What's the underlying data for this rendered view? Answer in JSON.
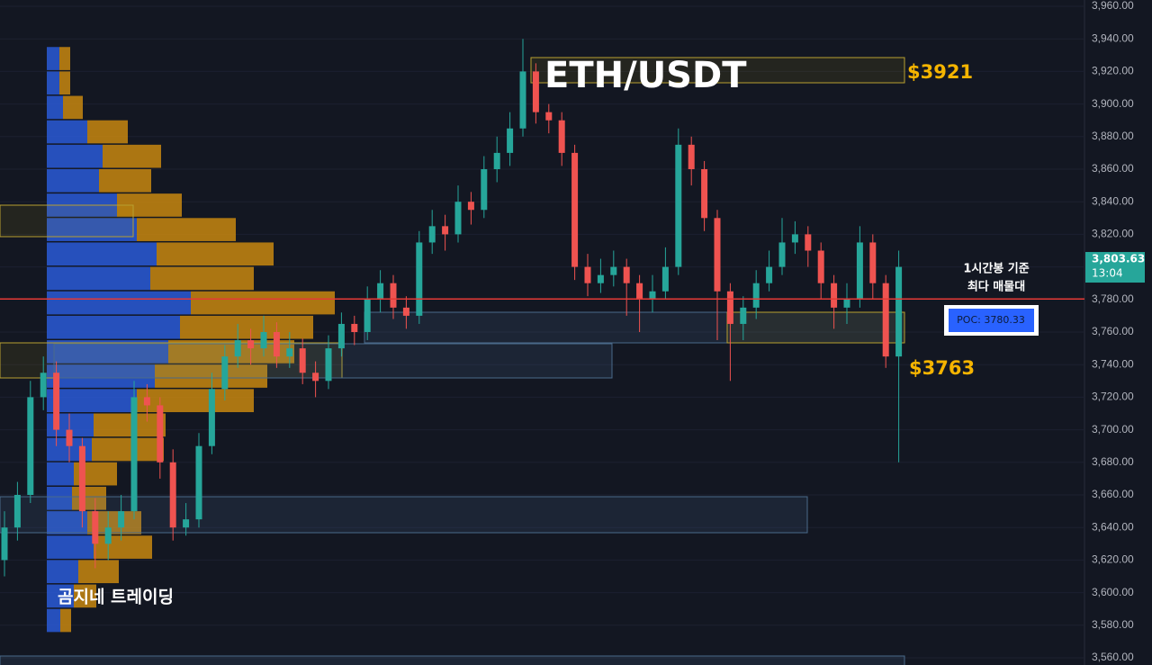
{
  "chart_data": {
    "type": "candlestick",
    "title": "ETH/USDT",
    "up_color": "#26a69a",
    "down_color": "#ef5350",
    "open": [
      3620,
      3640,
      3660,
      3720,
      3735,
      3700,
      3690,
      3650,
      3630,
      3640,
      3650,
      3720,
      3715,
      3680,
      3640,
      3645,
      3690,
      3725,
      3745,
      3755,
      3750,
      3760,
      3745,
      3750,
      3735,
      3730,
      3750,
      3765,
      3760,
      3780,
      3790,
      3775,
      3770,
      3815,
      3825,
      3820,
      3840,
      3835,
      3860,
      3870,
      3885,
      3920,
      3895,
      3890,
      3870,
      3800,
      3790,
      3795,
      3800,
      3790,
      3780,
      3785,
      3800,
      3875,
      3860,
      3830,
      3785,
      3765,
      3775,
      3790,
      3800,
      3815,
      3820,
      3810,
      3790,
      3775,
      3780,
      3815,
      3790,
      3745
    ],
    "high": [
      3650,
      3668,
      3730,
      3745,
      3742,
      3710,
      3695,
      3658,
      3650,
      3660,
      3730,
      3728,
      3720,
      3688,
      3655,
      3698,
      3735,
      3752,
      3765,
      3762,
      3770,
      3766,
      3760,
      3756,
      3742,
      3758,
      3772,
      3770,
      3788,
      3798,
      3795,
      3782,
      3822,
      3835,
      3832,
      3850,
      3846,
      3868,
      3880,
      3895,
      3940,
      3925,
      3900,
      3895,
      3875,
      3808,
      3805,
      3810,
      3805,
      3795,
      3795,
      3812,
      3885,
      3880,
      3865,
      3835,
      3790,
      3782,
      3798,
      3810,
      3830,
      3828,
      3825,
      3815,
      3795,
      3790,
      3825,
      3820,
      3795,
      3810
    ],
    "low": [
      3610,
      3632,
      3655,
      3712,
      3690,
      3680,
      3640,
      3615,
      3620,
      3632,
      3645,
      3705,
      3670,
      3632,
      3635,
      3640,
      3685,
      3718,
      3738,
      3740,
      3745,
      3738,
      3738,
      3728,
      3720,
      3725,
      3745,
      3752,
      3755,
      3772,
      3768,
      3762,
      3765,
      3808,
      3810,
      3815,
      3826,
      3830,
      3852,
      3862,
      3880,
      3888,
      3882,
      3862,
      3792,
      3782,
      3784,
      3788,
      3770,
      3760,
      3772,
      3780,
      3795,
      3850,
      3822,
      3755,
      3730,
      3755,
      3768,
      3785,
      3795,
      3808,
      3800,
      3780,
      3762,
      3765,
      3775,
      3780,
      3738,
      3680
    ],
    "close": [
      3640,
      3660,
      3720,
      3735,
      3700,
      3690,
      3650,
      3630,
      3640,
      3650,
      3720,
      3715,
      3680,
      3640,
      3645,
      3690,
      3725,
      3745,
      3755,
      3750,
      3760,
      3745,
      3750,
      3735,
      3730,
      3750,
      3765,
      3760,
      3780,
      3790,
      3775,
      3770,
      3815,
      3825,
      3820,
      3840,
      3835,
      3860,
      3870,
      3885,
      3920,
      3895,
      3890,
      3870,
      3800,
      3790,
      3795,
      3800,
      3790,
      3780,
      3785,
      3800,
      3875,
      3860,
      3830,
      3785,
      3765,
      3775,
      3790,
      3800,
      3815,
      3820,
      3810,
      3790,
      3775,
      3780,
      3815,
      3790,
      3745,
      3800
    ],
    "ylim": [
      3560,
      3960
    ],
    "yticks": [
      {
        "value": 3560,
        "label": "3,560.00"
      },
      {
        "value": 3580,
        "label": "3,580.00"
      },
      {
        "value": 3600,
        "label": "3,600.00"
      },
      {
        "value": 3620,
        "label": "3,620.00"
      },
      {
        "value": 3640,
        "label": "3,640.00"
      },
      {
        "value": 3660,
        "label": "3,660.00"
      },
      {
        "value": 3680,
        "label": "3,680.00"
      },
      {
        "value": 3700,
        "label": "3,700.00"
      },
      {
        "value": 3720,
        "label": "3,720.00"
      },
      {
        "value": 3740,
        "label": "3,740.00"
      },
      {
        "value": 3760,
        "label": "3,760.00"
      },
      {
        "value": 3780,
        "label": "3,780.00"
      },
      {
        "value": 3800,
        "label": "3,800.00"
      },
      {
        "value": 3820,
        "label": "3,820.00"
      },
      {
        "value": 3840,
        "label": "3,840.00"
      },
      {
        "value": 3860,
        "label": "3,860.00"
      },
      {
        "value": 3880,
        "label": "3,880.00"
      },
      {
        "value": 3900,
        "label": "3,900.00"
      },
      {
        "value": 3920,
        "label": "3,920.00"
      },
      {
        "value": 3940,
        "label": "3,940.00"
      },
      {
        "value": 3960,
        "label": "3,960.00"
      }
    ],
    "profile": {
      "bins": [
        3575,
        3590,
        3605,
        3620,
        3635,
        3650,
        3665,
        3680,
        3695,
        3710,
        3725,
        3740,
        3755,
        3770,
        3785,
        3800,
        3815,
        3830,
        3845,
        3860,
        3875,
        3890,
        3905,
        3920,
        3935
      ],
      "buy": [
        15,
        30,
        35,
        52,
        45,
        28,
        30,
        50,
        52,
        100,
        120,
        135,
        148,
        160,
        115,
        122,
        100,
        78,
        58,
        62,
        45,
        18,
        14,
        14
      ],
      "sell": [
        12,
        25,
        45,
        65,
        60,
        38,
        48,
        80,
        80,
        130,
        125,
        140,
        148,
        160,
        115,
        130,
        110,
        72,
        58,
        65,
        45,
        22,
        12,
        12
      ],
      "buy_color": "#2a5bd7",
      "sell_color": "#c8870f"
    },
    "poc": 3780.33,
    "poc_label": "POC: 3780.33",
    "last_price": 3803.63,
    "last_price_label": "3,803.63",
    "countdown": "13:04",
    "annotations": [
      "$3921",
      "$3763",
      "1시간봉 기준",
      "최다 매물대",
      "곰지네 트레이딩"
    ]
  }
}
